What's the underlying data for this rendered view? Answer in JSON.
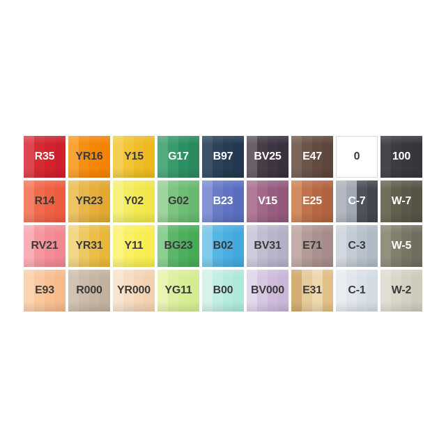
{
  "page": {
    "background": "#ffffff",
    "dark_label_color": "#3a3a3a",
    "light_label_color": "#ffffff",
    "blank_swatch_border": "#d9d9d9"
  },
  "chart_data": {
    "type": "table",
    "columns": 9,
    "rows": 4,
    "description_codes": [
      "R35",
      "YR16",
      "Y15",
      "G17",
      "B97",
      "BV25",
      "E47",
      "0",
      "100",
      "R14",
      "YR23",
      "Y02",
      "G02",
      "B23",
      "V15",
      "E25",
      "C-7",
      "W-7",
      "RV21",
      "YR31",
      "Y11",
      "BG23",
      "B02",
      "BV31",
      "E71",
      "C-3",
      "W-5",
      "E93",
      "R000",
      "YR000",
      "YG11",
      "B00",
      "BV000",
      "E31",
      "C-1",
      "W-2"
    ],
    "grid": [
      [
        {
          "code": "R35",
          "stripes": [
            "#df4750",
            "#d62a34",
            "#d2222e",
            "#ce1f2b"
          ],
          "label_color": "#ffffff"
        },
        {
          "code": "YR16",
          "stripes": [
            "#f8a435",
            "#f68e12",
            "#f58708",
            "#f38304"
          ],
          "label_color": "#3a3a3a"
        },
        {
          "code": "Y15",
          "stripes": [
            "#f5cf53",
            "#f1c536",
            "#efbd27",
            "#edb91f"
          ],
          "label_color": "#3a3a3a"
        },
        {
          "code": "G17",
          "stripes": [
            "#54aa7f",
            "#3a9b6d",
            "#2d9062",
            "#288a5d"
          ],
          "label_color": "#ffffff"
        },
        {
          "code": "B97",
          "stripes": [
            "#3b5269",
            "#2c4259",
            "#263c52",
            "#233850"
          ],
          "label_color": "#ffffff"
        },
        {
          "code": "BV25",
          "stripes": [
            "#6c6068",
            "#473c47",
            "#3f3542",
            "#3a3140"
          ],
          "label_color": "#ffffff"
        },
        {
          "code": "E47",
          "stripes": [
            "#7c655a",
            "#6c554a",
            "#634b40",
            "#5d463c"
          ],
          "label_color": "#ffffff"
        },
        {
          "code": "0",
          "stripes": [
            "#ffffff",
            "#ffffff",
            "#ffffff",
            "#ffffff"
          ],
          "label_color": "#3a3a3a",
          "border": "#d9d9d9"
        },
        {
          "code": "100",
          "stripes": [
            "#45474d",
            "#3b3d43",
            "#37393f",
            "#35373d"
          ],
          "label_color": "#ffffff"
        }
      ],
      [
        {
          "code": "R14",
          "stripes": [
            "#f48065",
            "#f16a4d",
            "#ef6144",
            "#ee5c3f"
          ],
          "label_color": "#3a3a3a"
        },
        {
          "code": "YR23",
          "stripes": [
            "#edc364",
            "#e8b74a",
            "#e5ae3b",
            "#e2a833"
          ],
          "label_color": "#3a3a3a"
        },
        {
          "code": "Y02",
          "stripes": [
            "#f6f07c",
            "#f3eb62",
            "#f1e852",
            "#f0e64b"
          ],
          "label_color": "#3a3a3a"
        },
        {
          "code": "G02",
          "stripes": [
            "#9ed49e",
            "#7cc581",
            "#6ebd74",
            "#67b96f"
          ],
          "label_color": "#3a3a3a"
        },
        {
          "code": "B23",
          "stripes": [
            "#8393d4",
            "#6a7cc8",
            "#5f72c3",
            "#5a6ec0"
          ],
          "label_color": "#ffffff"
        },
        {
          "code": "V15",
          "stripes": [
            "#b27a98",
            "#a16889",
            "#985e81",
            "#93597d"
          ],
          "label_color": "#ffffff"
        },
        {
          "code": "E25",
          "stripes": [
            "#d08b60",
            "#bf724d",
            "#b66844",
            "#b16340"
          ],
          "label_color": "#ffffff"
        },
        {
          "code": "C-7",
          "stripes": [
            "#b3b8c0",
            "#a2a8b2",
            "#4e535b",
            "#42474e"
          ],
          "label_color": "#ffffff"
        },
        {
          "code": "W-7",
          "stripes": [
            "#716f5c",
            "#615f4e",
            "#5a5848",
            "#555344"
          ],
          "label_color": "#ffffff"
        }
      ],
      [
        {
          "code": "RV21",
          "stripes": [
            "#f9afb6",
            "#f697a0",
            "#f48c96",
            "#f38791"
          ],
          "label_color": "#3a3a3a"
        },
        {
          "code": "YR31",
          "stripes": [
            "#f2d788",
            "#eec961",
            "#ebbe48",
            "#e8b639"
          ],
          "label_color": "#3a3a3a"
        },
        {
          "code": "Y11",
          "stripes": [
            "#fbf482",
            "#faf066",
            "#f9ee57",
            "#f8ec4f"
          ],
          "label_color": "#3a3a3a"
        },
        {
          "code": "BG23",
          "stripes": [
            "#8ccf93",
            "#5cb668",
            "#4daf5d",
            "#46ab57"
          ],
          "label_color": "#3a3a3a"
        },
        {
          "code": "B02",
          "stripes": [
            "#81caeb",
            "#55b5e3",
            "#48aee0",
            "#40aade"
          ],
          "label_color": "#3a3a3a"
        },
        {
          "code": "BV31",
          "stripes": [
            "#cfcbdb",
            "#c2bdd1",
            "#bab4cb",
            "#b5afc7"
          ],
          "label_color": "#3a3a3a"
        },
        {
          "code": "E71",
          "stripes": [
            "#c4ada8",
            "#b49b97",
            "#ab918d",
            "#a68c88"
          ],
          "label_color": "#3a3a3a"
        },
        {
          "code": "C-3",
          "stripes": [
            "#d2d8df",
            "#c3cbd4",
            "#b7c1cc",
            "#afbac7"
          ],
          "label_color": "#3a3a3a"
        },
        {
          "code": "W-5",
          "stripes": [
            "#92907f",
            "#81806f",
            "#777564",
            "#706e5f"
          ],
          "label_color": "#ffffff"
        }
      ],
      [
        {
          "code": "E93",
          "stripes": [
            "#fbd3ad",
            "#f9c89f",
            "#f8bf92",
            "#f6ba8b"
          ],
          "label_color": "#3a3a3a"
        },
        {
          "code": "R000",
          "stripes": [
            "#d1c3b3",
            "#cabbaa",
            "#c5b5a3",
            "#c2b19f"
          ],
          "label_color": "#3a3a3a"
        },
        {
          "code": "YR000",
          "stripes": [
            "#f8e5d0",
            "#f5dcc2",
            "#f3d5b7",
            "#f2d1b0"
          ],
          "label_color": "#3a3a3a"
        },
        {
          "code": "YG11",
          "stripes": [
            "#e8f5b4",
            "#def0a1",
            "#d7ee96",
            "#d3ec8f"
          ],
          "label_color": "#3a3a3a"
        },
        {
          "code": "B00",
          "stripes": [
            "#d7f2eb",
            "#c3eee3",
            "#b5ebdd",
            "#ade8d9"
          ],
          "label_color": "#3a3a3a"
        },
        {
          "code": "BV000",
          "stripes": [
            "#e3d7eb",
            "#d7c7e2",
            "#cfbcdc",
            "#cab6d8"
          ],
          "label_color": "#3a3a3a"
        },
        {
          "code": "E31",
          "stripes": [
            "#d5ac71",
            "#e6cb9a",
            "#edd7ae",
            "#e1bf85"
          ],
          "label_color": "#3a3a3a"
        },
        {
          "code": "C-1",
          "stripes": [
            "#e9edf2",
            "#e0e6ec",
            "#d9e0e8",
            "#d3dce4"
          ],
          "label_color": "#3a3a3a"
        },
        {
          "code": "W-2",
          "stripes": [
            "#e1dfd3",
            "#d9d7c9",
            "#d2d0c1",
            "#cdcbbb"
          ],
          "label_color": "#3a3a3a"
        }
      ]
    ]
  }
}
